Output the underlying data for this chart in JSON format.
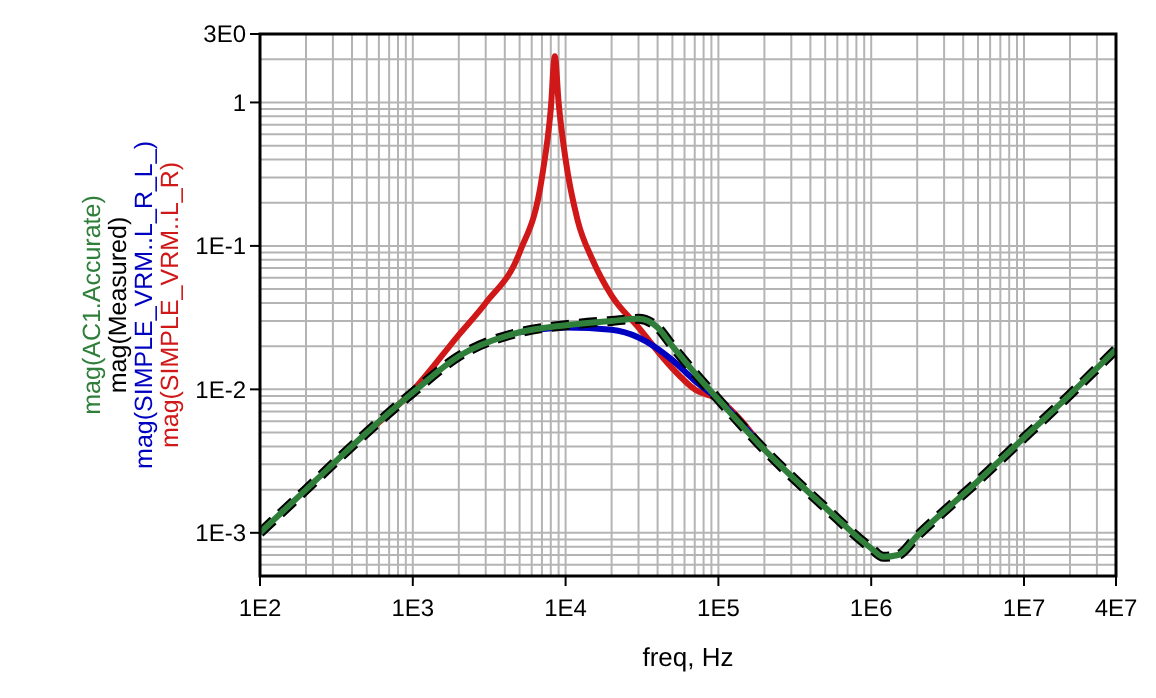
{
  "chart_data": {
    "type": "line",
    "xlabel": "freq, Hz",
    "log": "xy",
    "grid": true,
    "legend": "left",
    "xlim": [
      100,
      40000000
    ],
    "ylim": [
      0.0005,
      3
    ],
    "xticks": [
      {
        "value": 100,
        "label": "1E2"
      },
      {
        "value": 1000,
        "label": "1E3"
      },
      {
        "value": 10000,
        "label": "1E4"
      },
      {
        "value": 100000,
        "label": "1E5"
      },
      {
        "value": 1000000,
        "label": "1E6"
      },
      {
        "value": 10000000,
        "label": "1E7"
      },
      {
        "value": 40000000,
        "label": "4E7"
      }
    ],
    "yticks": [
      {
        "value": 0.001,
        "label": "1E-3"
      },
      {
        "value": 0.01,
        "label": "1E-2"
      },
      {
        "value": 0.1,
        "label": "1E-1"
      },
      1,
      {
        "value": 3,
        "label": "3E0"
      }
    ],
    "series": [
      {
        "name": "mag(AC1.Accurate)",
        "color": "#2f7f3a",
        "line_style": "solid",
        "x": [
          100,
          200,
          500,
          1000,
          2000,
          5000,
          10000,
          20000,
          30000,
          40000,
          50000,
          70000,
          100000,
          200000,
          500000,
          1000000,
          1200000,
          1500000,
          2000000,
          5000000,
          10000000,
          20000000,
          40000000
        ],
        "values": [
          0.001,
          0.002,
          0.005,
          0.0095,
          0.017,
          0.025,
          0.028,
          0.03,
          0.031,
          0.027,
          0.02,
          0.013,
          0.0085,
          0.0038,
          0.0015,
          0.00078,
          0.00068,
          0.0007,
          0.00095,
          0.0023,
          0.0046,
          0.0092,
          0.019
        ]
      },
      {
        "name": "mag(Measured)",
        "color": "#000000",
        "line_style": "dashed",
        "x": [
          100,
          200,
          500,
          1000,
          2000,
          5000,
          10000,
          20000,
          30000,
          40000,
          50000,
          70000,
          100000,
          200000,
          500000,
          1000000,
          1200000,
          1500000,
          2000000,
          5000000,
          10000000,
          20000000,
          40000000
        ],
        "values": [
          0.001,
          0.002,
          0.005,
          0.0095,
          0.017,
          0.025,
          0.028,
          0.03,
          0.031,
          0.027,
          0.02,
          0.013,
          0.0085,
          0.0038,
          0.0015,
          0.00078,
          0.00068,
          0.0007,
          0.00095,
          0.0023,
          0.0046,
          0.0092,
          0.019
        ]
      },
      {
        "name": "mag(SIMPLE_VRM..L_R_L_)",
        "color": "#0000c0",
        "line_style": "solid",
        "x": [
          5000,
          10000,
          20000,
          30000,
          50000,
          70000,
          100000,
          200000
        ],
        "values": [
          0.025,
          0.027,
          0.026,
          0.023,
          0.016,
          0.0115,
          0.0085,
          0.0038
        ]
      },
      {
        "name": "mag(SIMPLE_VRM..L_R)",
        "color": "#d01818",
        "line_style": "solid",
        "x": [
          500,
          1000,
          2000,
          3000,
          5000,
          7000,
          8000,
          8500,
          9000,
          10000,
          12000,
          15000,
          20000,
          30000,
          50000,
          70000,
          100000,
          200000
        ],
        "values": [
          0.005,
          0.0098,
          0.024,
          0.04,
          0.09,
          0.3,
          0.9,
          2.1,
          1,
          0.4,
          0.15,
          0.08,
          0.045,
          0.027,
          0.014,
          0.01,
          0.0085,
          0.0038
        ]
      }
    ]
  }
}
